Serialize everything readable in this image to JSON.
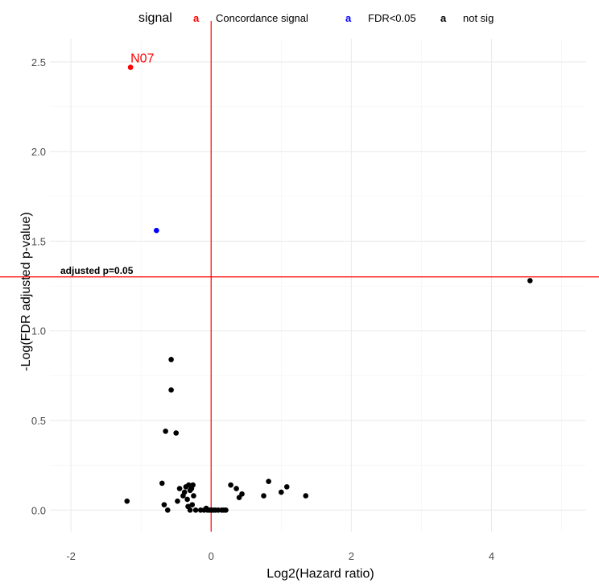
{
  "chart_data": {
    "type": "scatter",
    "xlabel": "Log2(Hazard ratio)",
    "ylabel": "-Log(FDR adjusted p-value)",
    "xlim": [
      -2.3,
      5.35
    ],
    "ylim": [
      -0.12,
      2.63
    ],
    "x_ticks": [
      -2,
      0,
      2,
      4
    ],
    "y_ticks": [
      0.0,
      0.5,
      1.0,
      1.5,
      2.0,
      2.5
    ],
    "x_tick_labels": [
      "-2",
      "0",
      "2",
      "4"
    ],
    "y_tick_labels": [
      "0.0",
      "0.5",
      "1.0",
      "1.5",
      "2.0",
      "2.5"
    ],
    "grid": true,
    "legend": {
      "title": "signal",
      "position": "top",
      "entries": [
        {
          "label": "Concordance signal",
          "color": "#ff0000",
          "key": "a"
        },
        {
          "label": "FDR<0.05",
          "color": "#0000ff",
          "key": "a"
        },
        {
          "label": "not sig",
          "color": "#000000",
          "key": "a"
        }
      ]
    },
    "reference_lines": {
      "vertical_x": 0,
      "horizontal_y": 1.301,
      "color": "#ff0000",
      "horizontal_label": "adjusted p=0.05"
    },
    "series": [
      {
        "name": "Concordance signal",
        "color": "#ff0000",
        "points": [
          {
            "x": -1.15,
            "y": 2.47,
            "label": "N07"
          }
        ]
      },
      {
        "name": "FDR<0.05",
        "color": "#0000ff",
        "points": [
          {
            "x": -0.78,
            "y": 1.56
          }
        ]
      },
      {
        "name": "not sig",
        "color": "#000000",
        "points": [
          {
            "x": 4.55,
            "y": 1.28
          },
          {
            "x": -0.57,
            "y": 0.84
          },
          {
            "x": -0.57,
            "y": 0.67
          },
          {
            "x": -0.65,
            "y": 0.44
          },
          {
            "x": -0.5,
            "y": 0.43
          },
          {
            "x": -1.2,
            "y": 0.05
          },
          {
            "x": -0.7,
            "y": 0.15
          },
          {
            "x": -0.67,
            "y": 0.03
          },
          {
            "x": -0.62,
            "y": 0.0
          },
          {
            "x": -0.48,
            "y": 0.05
          },
          {
            "x": -0.45,
            "y": 0.12
          },
          {
            "x": -0.4,
            "y": 0.08
          },
          {
            "x": -0.38,
            "y": 0.1
          },
          {
            "x": -0.36,
            "y": 0.13
          },
          {
            "x": -0.34,
            "y": 0.06
          },
          {
            "x": -0.32,
            "y": 0.14
          },
          {
            "x": -0.3,
            "y": 0.11
          },
          {
            "x": -0.28,
            "y": 0.12
          },
          {
            "x": -0.26,
            "y": 0.14
          },
          {
            "x": -0.25,
            "y": 0.08
          },
          {
            "x": -0.33,
            "y": 0.02
          },
          {
            "x": -0.3,
            "y": 0.0
          },
          {
            "x": -0.27,
            "y": 0.03
          },
          {
            "x": -0.22,
            "y": 0.0
          },
          {
            "x": -0.15,
            "y": 0.0
          },
          {
            "x": -0.1,
            "y": 0.0
          },
          {
            "x": -0.07,
            "y": 0.01
          },
          {
            "x": -0.05,
            "y": 0.0
          },
          {
            "x": -0.02,
            "y": 0.0
          },
          {
            "x": 0.0,
            "y": 0.0
          },
          {
            "x": 0.03,
            "y": 0.0
          },
          {
            "x": 0.06,
            "y": 0.0
          },
          {
            "x": 0.1,
            "y": 0.0
          },
          {
            "x": 0.15,
            "y": 0.0
          },
          {
            "x": 0.18,
            "y": 0.0
          },
          {
            "x": 0.21,
            "y": 0.0
          },
          {
            "x": 0.28,
            "y": 0.14
          },
          {
            "x": 0.36,
            "y": 0.12
          },
          {
            "x": 0.4,
            "y": 0.07
          },
          {
            "x": 0.44,
            "y": 0.09
          },
          {
            "x": 0.75,
            "y": 0.08
          },
          {
            "x": 0.82,
            "y": 0.16
          },
          {
            "x": 1.0,
            "y": 0.1
          },
          {
            "x": 1.08,
            "y": 0.13
          },
          {
            "x": 1.35,
            "y": 0.08
          }
        ]
      }
    ]
  }
}
